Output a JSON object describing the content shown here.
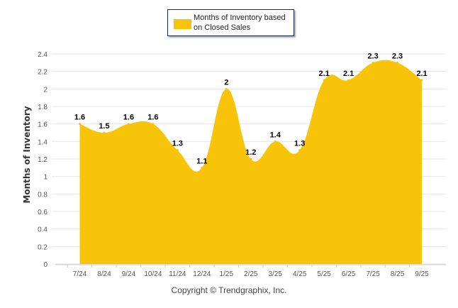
{
  "chart_data": {
    "type": "area",
    "title": "",
    "legend": {
      "label": "Months of Inventory based on Closed Sales",
      "placement": "top-center"
    },
    "categories": [
      "7/24",
      "8/24",
      "9/24",
      "10/24",
      "11/24",
      "12/24",
      "1/25",
      "2/25",
      "3/25",
      "4/25",
      "5/25",
      "6/25",
      "7/25",
      "8/25",
      "9/25"
    ],
    "series": [
      {
        "name": "Months of Inventory based on Closed Sales",
        "values": [
          1.6,
          1.5,
          1.6,
          1.6,
          1.3,
          1.1,
          2,
          1.2,
          1.4,
          1.3,
          2.1,
          2.1,
          2.3,
          2.3,
          2.1
        ],
        "color": "#f7c40a"
      }
    ],
    "xlabel": "",
    "ylabel": "Months of Inventory",
    "ylim": [
      0,
      2.4
    ],
    "yticks": [
      "0",
      "0.2",
      "0.4",
      "0.6",
      "0.8",
      "1",
      "1.2",
      "1.4",
      "1.6",
      "1.8",
      "2",
      "2.2",
      "2.4"
    ],
    "grid": true
  },
  "footer": {
    "copyright": "Copyright © Trendgraphix, Inc."
  }
}
